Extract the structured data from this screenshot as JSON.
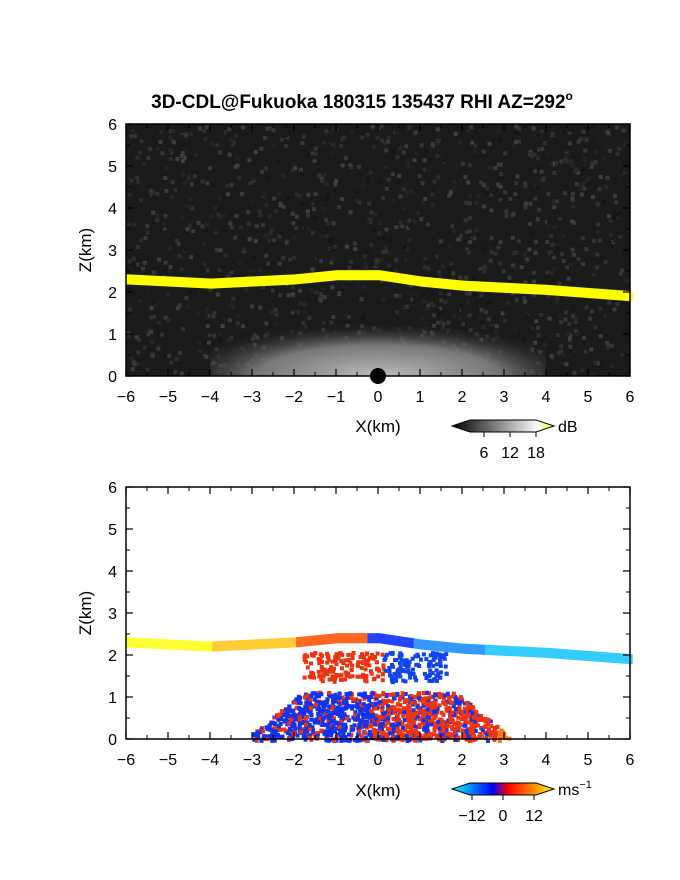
{
  "chart_data": [
    {
      "type": "heatmap",
      "panel": "reflectivity",
      "title": "3D-CDL@Fukuoka 180315 135437 RHI AZ=292",
      "title_superscript": "o",
      "xlabel": "X(km)",
      "ylabel": "Z(km)",
      "xlim": [
        -6,
        6
      ],
      "ylim": [
        0,
        6
      ],
      "xticks": [
        -6,
        -5,
        -4,
        -3,
        -2,
        -1,
        0,
        1,
        2,
        3,
        4,
        5,
        6
      ],
      "yticks": [
        0,
        1,
        2,
        3,
        4,
        5,
        6
      ],
      "colorbar": {
        "unit": "dB",
        "ticks": [
          6,
          12,
          18
        ],
        "colors": [
          "#000000",
          "#ffffff",
          "#ffff00"
        ]
      },
      "layer_top_km": {
        "x": [
          -6,
          -4,
          -2,
          -1,
          0,
          1,
          2,
          4,
          6
        ],
        "z": [
          2.35,
          2.25,
          2.35,
          2.45,
          2.45,
          2.3,
          2.2,
          2.1,
          1.95
        ]
      }
    },
    {
      "type": "heatmap",
      "panel": "doppler velocity",
      "xlabel": "X(km)",
      "ylabel": "Z(km)",
      "xlim": [
        -6,
        6
      ],
      "ylim": [
        0,
        6
      ],
      "xticks": [
        -6,
        -5,
        -4,
        -3,
        -2,
        -1,
        0,
        1,
        2,
        3,
        4,
        5,
        6
      ],
      "yticks": [
        0,
        1,
        2,
        3,
        4,
        5,
        6
      ],
      "colorbar": {
        "unit": "ms",
        "unit_superscript": "−1",
        "ticks": [
          "−12",
          "0",
          "12"
        ],
        "colors": [
          "#00ffff",
          "#0000ff",
          "#ff0000",
          "#ffff00"
        ]
      },
      "layer_top_km": {
        "x": [
          -6,
          -4,
          -2,
          -1,
          0,
          1,
          2,
          4,
          6
        ],
        "z": [
          2.35,
          2.25,
          2.35,
          2.45,
          2.45,
          2.3,
          2.2,
          2.1,
          1.95
        ]
      }
    }
  ]
}
